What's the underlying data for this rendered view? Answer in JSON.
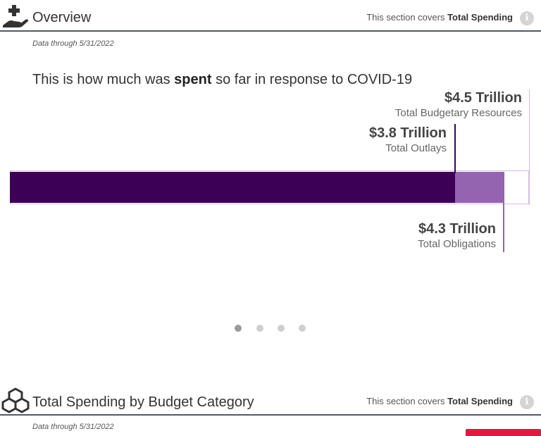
{
  "overview": {
    "title": "Overview",
    "covers_prefix": "This section covers ",
    "covers_bold": "Total Spending",
    "data_through": "Data through 5/31/2022",
    "headline": {
      "prefix": "This is how much was ",
      "bold": "spent",
      "suffix": " so far in response to COVID-19"
    },
    "bar_chart": {
      "total_budgetary_resources": {
        "value": "$4.5 Trillion",
        "label": "Total Budgetary Resources",
        "amount": 4.5
      },
      "total_outlays": {
        "value": "$3.8 Trillion",
        "label": "Total Outlays",
        "amount": 3.8
      },
      "total_obligations": {
        "value": "$4.3 Trillion",
        "label": "Total Obligations",
        "amount": 4.3
      }
    },
    "carousel": {
      "dots": 4,
      "active_index": 0
    }
  },
  "budget_category": {
    "title": "Total Spending by Budget Category",
    "covers_prefix": "This section covers ",
    "covers_bold": "Total Spending",
    "data_through": "Data through 5/31/2022"
  },
  "colors": {
    "outlays": "#3d0057",
    "obligations": "#9564b0",
    "resources_border": "#d4bddf",
    "accent_red": "#e2193e",
    "rule": "#555a60"
  },
  "icons": {
    "overview": "hand-plus-icon",
    "budget_category": "cubes-icon",
    "info": "info-icon"
  }
}
